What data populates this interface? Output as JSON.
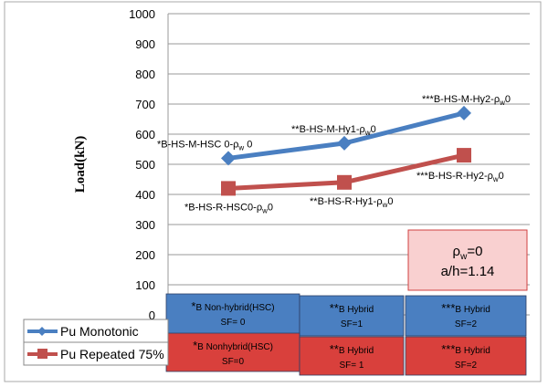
{
  "chart_data": {
    "type": "line",
    "ylabel": "Load(kN)",
    "ylim": [
      0,
      1000
    ],
    "yticks": [
      "0",
      "100",
      "200",
      "300",
      "400",
      "500",
      "600",
      "700",
      "800",
      "900",
      "1000"
    ],
    "grid": true,
    "legend_position": "bottom-left",
    "x": [
      "*B Non-hybrid(HSC) SF=0",
      "**B Hybrid SF=1",
      "***B Hybrid SF=2"
    ],
    "series": [
      {
        "name": "Pu Monotonic",
        "color": "#4a7fc1",
        "marker": "diamond",
        "values": [
          520,
          570,
          670
        ],
        "point_labels": [
          {
            "stars": "*",
            "text": "B-HS-M-HSC 0-ρ",
            "sub": "w",
            "tail": " 0"
          },
          {
            "stars": "**",
            "text": "B-HS-M-Hy1-ρ",
            "sub": "w",
            "tail": "0"
          },
          {
            "stars": "***",
            "text": "B-HS-M-Hy2-ρ",
            "sub": "w",
            "tail": "0"
          }
        ]
      },
      {
        "name": "Pu Repeated 75%",
        "color": "#c0504d",
        "marker": "square",
        "values": [
          420,
          440,
          530
        ],
        "point_labels": [
          {
            "stars": "*",
            "text": "B-HS-R-HSC0-ρ",
            "sub": "w",
            "tail": "0"
          },
          {
            "stars": "**",
            "text": "B-HS-R-Hy1-ρ",
            "sub": "w",
            "tail": "0"
          },
          {
            "stars": "***",
            "text": "B-HS-R-Hy2-ρ",
            "sub": "w",
            "tail": "0"
          }
        ]
      }
    ],
    "category_boxes": {
      "monotonic": [
        {
          "stars": "*",
          "title": "B  Non-hybrid(HSC)",
          "sf": "SF= 0"
        },
        {
          "stars": "**",
          "title": "B Hybrid",
          "sf": "SF=1"
        },
        {
          "stars": "***",
          "title": "B Hybrid",
          "sf": "SF=2"
        }
      ],
      "repeated": [
        {
          "stars": "*",
          "title": "B Nonhybrid(HSC)",
          "sf": "SF=0"
        },
        {
          "stars": "**",
          "title": "B Hybrid",
          "sf": "SF= 1"
        },
        {
          "stars": "***",
          "title": "B Hybrid",
          "sf": "SF=2"
        }
      ]
    },
    "annotation": {
      "line1_main": "ρ",
      "line1_sub": "w",
      "line1_tail": "=0",
      "line2": "a/h=1.14"
    }
  }
}
